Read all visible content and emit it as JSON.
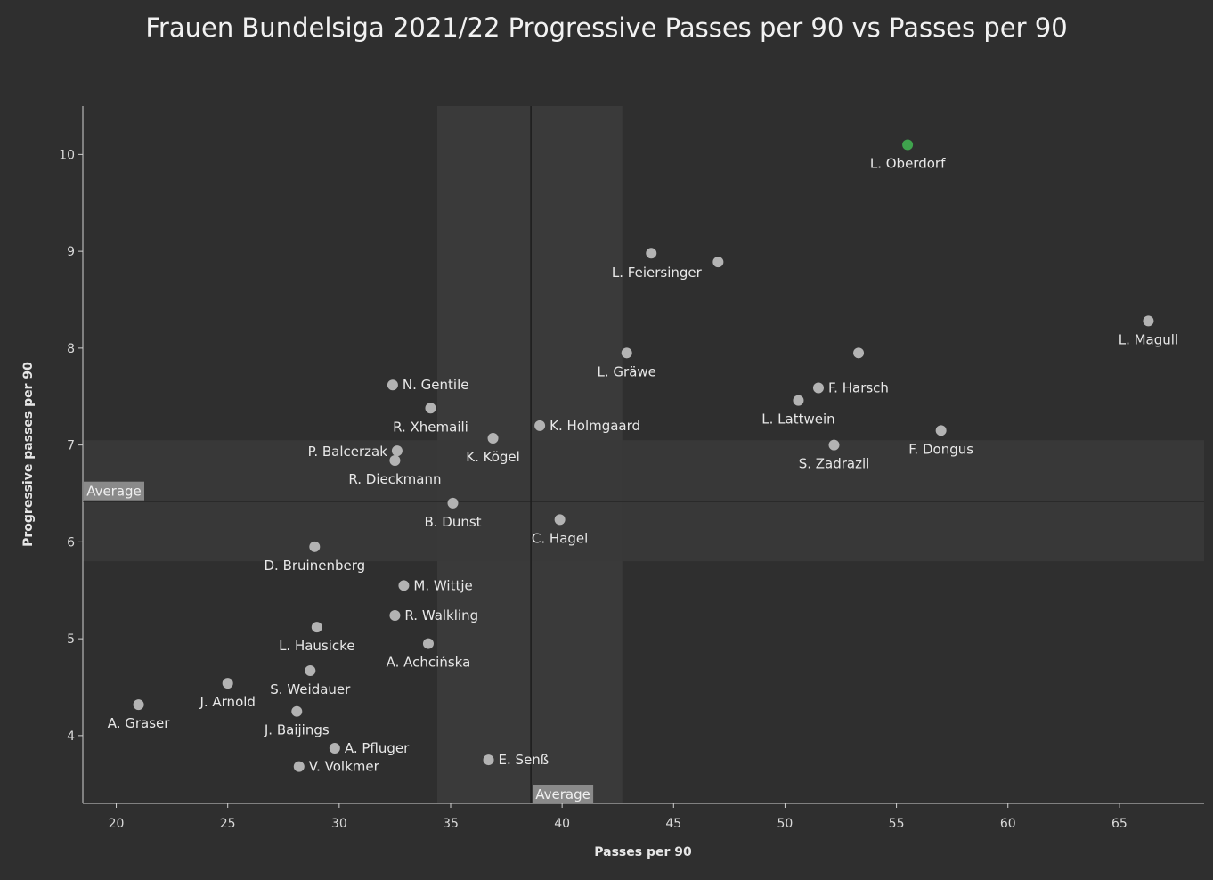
{
  "chart_data": {
    "type": "scatter",
    "title": "Frauen Bundelsiga 2021/22 Progressive Passes per 90 vs Passes per 90",
    "xlabel": "Passes per 90",
    "ylabel": "Progressive passes per 90",
    "xlim": [
      18.5,
      68.8
    ],
    "ylim": [
      3.3,
      10.5
    ],
    "xticks": [
      20,
      25,
      30,
      35,
      40,
      45,
      50,
      55,
      60,
      65
    ],
    "yticks": [
      4,
      5,
      6,
      7,
      8,
      9,
      10
    ],
    "grid": false,
    "average": {
      "x": 38.6,
      "y": 6.42,
      "x_label": "Average",
      "y_label": "Average",
      "x_band": [
        34.4,
        42.7
      ],
      "y_band": [
        5.8,
        7.05
      ]
    },
    "colors": {
      "background": "#2f2f2f",
      "point": "#b3b3b3",
      "highlight": "#3fa34d",
      "average_line": "#1c1c1c",
      "band": "#3a3a3a",
      "average_label_bg": "#8a8a8a"
    },
    "points": [
      {
        "label": "L. Oberdorf",
        "x": 55.5,
        "y": 10.1,
        "highlight": true,
        "pos": "below"
      },
      {
        "label": "",
        "x": 44.0,
        "y": 8.98,
        "pos": "below"
      },
      {
        "label": "L. Feiersinger",
        "x": 47.0,
        "y": 8.89,
        "pos": "below-left"
      },
      {
        "label": "L. Magull",
        "x": 66.3,
        "y": 8.28,
        "pos": "below"
      },
      {
        "label": "L. Gräwe",
        "x": 42.9,
        "y": 7.95,
        "pos": "below"
      },
      {
        "label": "",
        "x": 53.3,
        "y": 7.95,
        "pos": "below"
      },
      {
        "label": "N. Gentile",
        "x": 32.4,
        "y": 7.62,
        "pos": "right"
      },
      {
        "label": "F. Harsch",
        "x": 51.5,
        "y": 7.59,
        "pos": "right"
      },
      {
        "label": "L. Lattwein",
        "x": 50.6,
        "y": 7.46,
        "pos": "below"
      },
      {
        "label": "R. Xhemaili",
        "x": 34.1,
        "y": 7.38,
        "pos": "below"
      },
      {
        "label": "K. Holmgaard",
        "x": 39.0,
        "y": 7.2,
        "pos": "right"
      },
      {
        "label": "F. Dongus",
        "x": 57.0,
        "y": 7.15,
        "pos": "below"
      },
      {
        "label": "K.  Kögel",
        "x": 36.9,
        "y": 7.07,
        "pos": "below"
      },
      {
        "label": "S. Zadrazil",
        "x": 52.2,
        "y": 7.0,
        "pos": "below"
      },
      {
        "label": "P. Balcerzak",
        "x": 32.6,
        "y": 6.94,
        "pos": "left"
      },
      {
        "label": "R. Dieckmann",
        "x": 32.5,
        "y": 6.84,
        "pos": "below"
      },
      {
        "label": "B. Dunst",
        "x": 35.1,
        "y": 6.4,
        "pos": "below"
      },
      {
        "label": "C. Hagel",
        "x": 39.9,
        "y": 6.23,
        "pos": "below"
      },
      {
        "label": "D. Bruinenberg",
        "x": 28.9,
        "y": 5.95,
        "pos": "below"
      },
      {
        "label": "M. Wittje",
        "x": 32.9,
        "y": 5.55,
        "pos": "right"
      },
      {
        "label": "R. Walkling",
        "x": 32.5,
        "y": 5.24,
        "pos": "right"
      },
      {
        "label": "L. Hausicke",
        "x": 29.0,
        "y": 5.12,
        "pos": "below"
      },
      {
        "label": "A. Achcińska",
        "x": 34.0,
        "y": 4.95,
        "pos": "below"
      },
      {
        "label": "S. Weidauer",
        "x": 28.7,
        "y": 4.67,
        "pos": "below"
      },
      {
        "label": "J. Arnold",
        "x": 25.0,
        "y": 4.54,
        "pos": "below"
      },
      {
        "label": "A. Graser",
        "x": 21.0,
        "y": 4.32,
        "pos": "below"
      },
      {
        "label": "J. Baijings",
        "x": 28.1,
        "y": 4.25,
        "pos": "below"
      },
      {
        "label": "A. Pfluger",
        "x": 29.8,
        "y": 3.87,
        "pos": "right"
      },
      {
        "label": "E. Senß",
        "x": 36.7,
        "y": 3.75,
        "pos": "right"
      },
      {
        "label": "V. Volkmer",
        "x": 28.2,
        "y": 3.68,
        "pos": "right"
      }
    ]
  }
}
